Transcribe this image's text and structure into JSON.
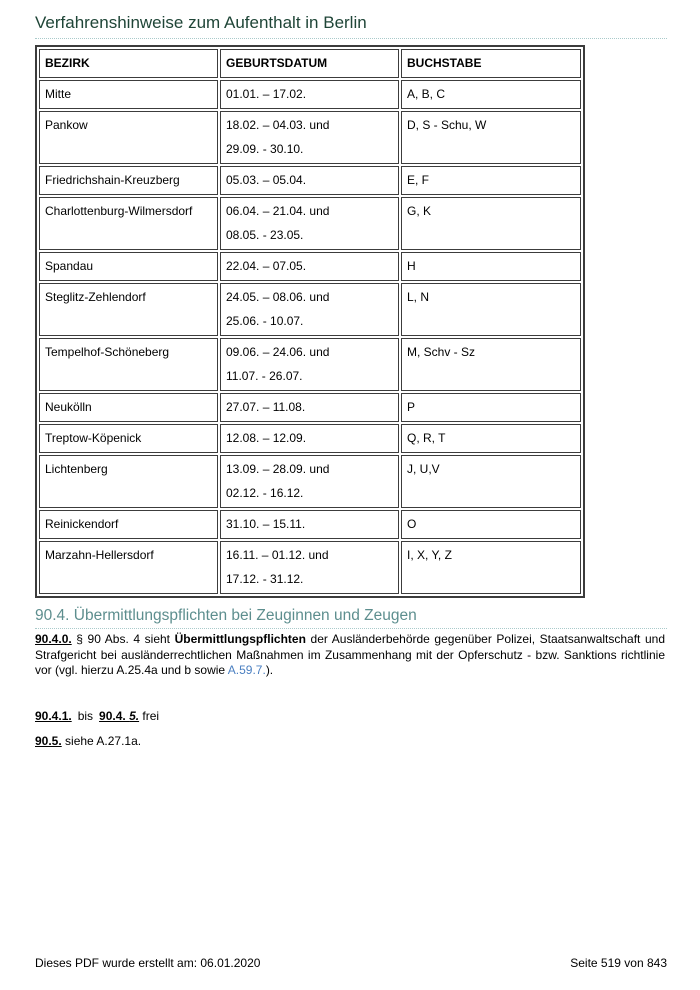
{
  "page": {
    "title": "Verfahrenshinweise zum Aufenthalt in Berlin"
  },
  "colors": {
    "title_green": "#1f4537",
    "heading_teal": "#5d8e8e",
    "dotted_separator": "#a9caca",
    "link_blue": "#4a7fc1",
    "table_border": "#3c3c3c"
  },
  "table": {
    "headers": [
      "BEZIRK",
      "GEBURTSDATUM",
      "BUCHSTABE"
    ],
    "rows": [
      {
        "bezirk": "Mitte",
        "geburtsdatum": [
          "01.01. – 17.02."
        ],
        "buchstabe": "A, B, C"
      },
      {
        "bezirk": "Pankow",
        "geburtsdatum": [
          "18.02. – 04.03. und",
          "29.09. - 30.10."
        ],
        "buchstabe": "D, S - Schu, W"
      },
      {
        "bezirk": "Friedrichshain-Kreuzberg",
        "geburtsdatum": [
          "05.03. – 05.04."
        ],
        "buchstabe": "E, F"
      },
      {
        "bezirk": "Charlottenburg-Wilmersdorf",
        "geburtsdatum": [
          "06.04. – 21.04. und",
          "08.05. - 23.05."
        ],
        "buchstabe": "G, K"
      },
      {
        "bezirk": "Spandau",
        "geburtsdatum": [
          "22.04. – 07.05."
        ],
        "buchstabe": "H"
      },
      {
        "bezirk": "Steglitz-Zehlendorf",
        "geburtsdatum": [
          "24.05. – 08.06. und",
          "25.06. - 10.07."
        ],
        "buchstabe": "L, N"
      },
      {
        "bezirk": "Tempelhof-Schöneberg",
        "geburtsdatum": [
          "09.06. – 24.06. und",
          "11.07. - 26.07."
        ],
        "buchstabe": "M, Schv - Sz"
      },
      {
        "bezirk": "Neukölln",
        "geburtsdatum": [
          "27.07. – 11.08."
        ],
        "buchstabe": "P"
      },
      {
        "bezirk": "Treptow-Köpenick",
        "geburtsdatum": [
          "12.08. – 12.09."
        ],
        "buchstabe": "Q, R, T"
      },
      {
        "bezirk": "Lichtenberg",
        "geburtsdatum": [
          "13.09. – 28.09. und",
          "02.12. - 16.12."
        ],
        "buchstabe": "J, U,V"
      },
      {
        "bezirk": "Reinickendorf",
        "geburtsdatum": [
          "31.10. – 15.11."
        ],
        "buchstabe": "O"
      },
      {
        "bezirk": "Marzahn-Hellersdorf",
        "geburtsdatum": [
          "16.11. – 01.12. und",
          "17.12. - 31.12."
        ],
        "buchstabe": "I, X, Y, Z"
      }
    ]
  },
  "section": {
    "heading": "90.4. Übermittlungspflichten bei Zeuginnen und Zeugen",
    "paragraph": {
      "ref": "90.4.0.",
      "text1": " § 90 Abs. 4 sieht ",
      "bold_term": "Übermittlungspflichten",
      "text2": " der Ausländerbehörde gegenüber Polizei, Staatsanwaltschaft und Strafgericht bei ausländerrechtlichen Maßnahmen im Zusammenhang mit der Opferschutz - bzw. Sanktions richtlinie vor (vgl. hierzu A.25.4a und b sowie ",
      "link": "A.59.7.",
      "text3": ")."
    },
    "frei_line": {
      "ref1": "90.4.1.",
      "mid": "bis",
      "ref2_a": "90.4. ",
      "ref2_b": "5.",
      "tail": " frei"
    },
    "siehe_line": {
      "ref": "90.5.",
      "tail": " siehe A.27.1a."
    }
  },
  "footer": {
    "left": "Dieses PDF wurde erstellt am: 06.01.2020",
    "right": "Seite 519 von 843"
  }
}
